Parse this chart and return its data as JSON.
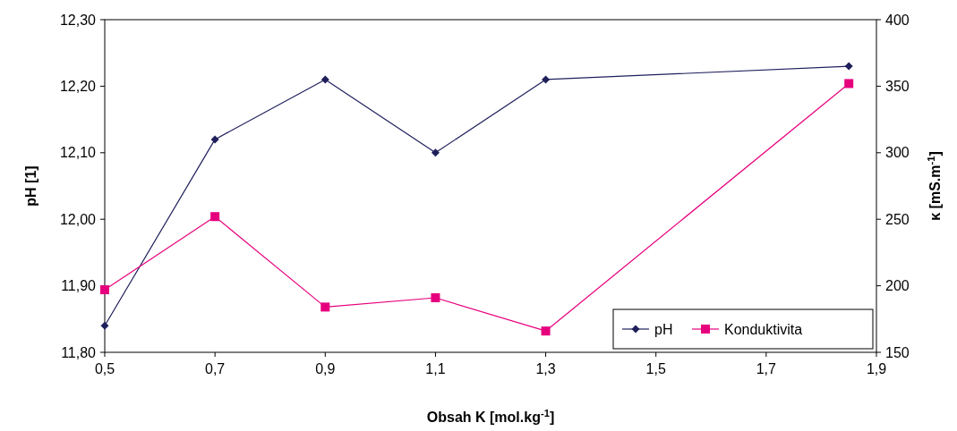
{
  "chart_data": {
    "type": "line",
    "xlabel": "Obsah K [mol.kg$^{-1}$]",
    "ylabel": "pH [1]",
    "y2label": "κ [mS.m$^{-1}$]",
    "x": [
      0.5,
      0.7,
      0.9,
      1.1,
      1.3,
      1.85
    ],
    "series": [
      {
        "name": "pH",
        "color": "#1f1f5c",
        "marker": "diamond",
        "values": [
          11.84,
          12.12,
          12.21,
          12.1,
          12.21,
          12.23
        ]
      },
      {
        "name": "Konduktivita",
        "color": "#e6007e",
        "marker": "square",
        "axis": "y2",
        "values": [
          197,
          252,
          184,
          191,
          166,
          352
        ]
      }
    ],
    "xlim": [
      0.5,
      1.9
    ],
    "xticks": [
      {
        "value": 0.5,
        "label": "0,5"
      },
      {
        "value": 0.7,
        "label": "0,7"
      },
      {
        "value": 0.9,
        "label": "0,9"
      },
      {
        "value": 1.1,
        "label": "1,1"
      },
      {
        "value": 1.3,
        "label": "1,3"
      },
      {
        "value": 1.5,
        "label": "1,5"
      },
      {
        "value": 1.7,
        "label": "1,7"
      },
      {
        "value": 1.9,
        "label": "1,9"
      }
    ],
    "ylim": [
      11.8,
      12.3
    ],
    "yticks": [
      {
        "value": 11.8,
        "label": "11,80"
      },
      {
        "value": 11.9,
        "label": "11,90"
      },
      {
        "value": 12.0,
        "label": "12,00"
      },
      {
        "value": 12.1,
        "label": "12,10"
      },
      {
        "value": 12.2,
        "label": "12,20"
      },
      {
        "value": 12.3,
        "label": "12,30"
      }
    ],
    "y2lim": [
      150,
      400
    ],
    "y2ticks": [
      150,
      200,
      250,
      300,
      350,
      400
    ],
    "legend": "bottom right",
    "grid": false,
    "line_style": "solid"
  }
}
